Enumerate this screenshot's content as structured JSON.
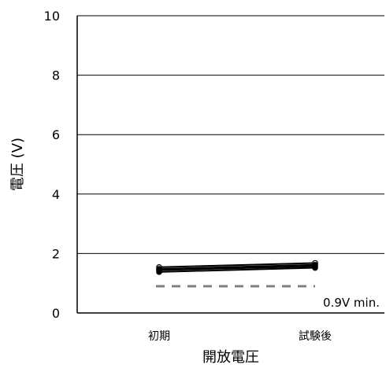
{
  "chart_data": {
    "type": "line",
    "title": "",
    "xlabel": "開放電圧",
    "ylabel": "電圧 (V)",
    "categories": [
      "初期",
      "試験後"
    ],
    "ylim": [
      0,
      10
    ],
    "yticks": [
      "0",
      "2",
      "4",
      "6",
      "8",
      "10"
    ],
    "grid": true,
    "series": [
      {
        "values": [
          1.54,
          1.68
        ]
      },
      {
        "values": [
          1.48,
          1.62
        ]
      },
      {
        "values": [
          1.44,
          1.57
        ]
      },
      {
        "values": [
          1.38,
          1.52
        ]
      }
    ],
    "threshold": {
      "value": 0.9,
      "label": "0.9V min."
    },
    "colors": {
      "series": "#000000",
      "grid": "#000000",
      "threshold": "#808080"
    }
  }
}
